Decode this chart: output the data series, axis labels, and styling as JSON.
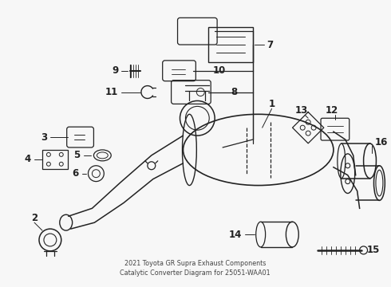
{
  "bg_color": "#f7f7f7",
  "line_color": "#222222",
  "title_line1": "2021 Toyota GR Supra Exhaust Components",
  "title_line2": "Catalytic Converter Diagram for 25051-WAA01",
  "fig_w": 4.9,
  "fig_h": 3.6,
  "dpi": 100,
  "label_fontsize": 8.5,
  "title_fontsize": 5.8
}
